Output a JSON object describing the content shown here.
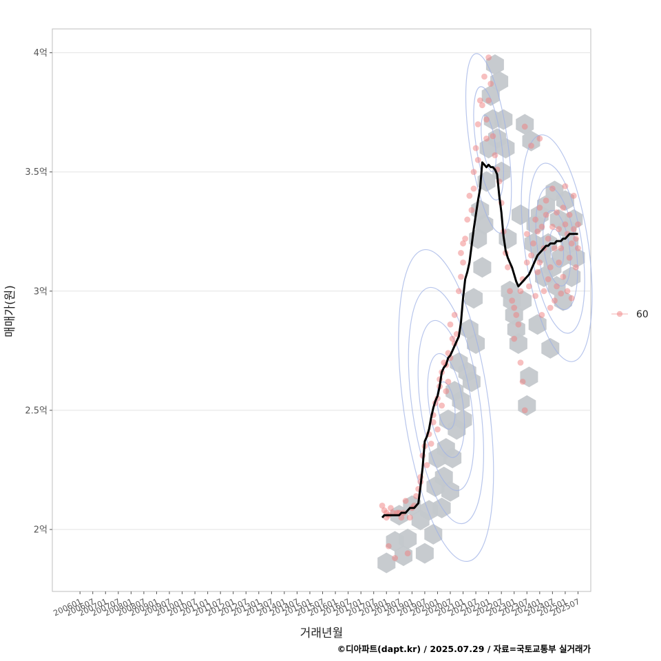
{
  "chart_data": {
    "type": "scatter",
    "xlabel": "거래년월",
    "ylabel": "매매가(원)",
    "caption": "©디아파트(dapt.kr) / 2025.07.29 / 자료=국토교통부 실거래가",
    "legend": {
      "position": "right",
      "entries": [
        "60"
      ]
    },
    "grid": true,
    "x_ticks": [
      "200601",
      "200607",
      "200701",
      "200707",
      "200801",
      "200807",
      "200901",
      "200907",
      "201001",
      "201007",
      "201101",
      "201107",
      "201201",
      "201207",
      "201301",
      "201307",
      "201401",
      "201407",
      "201501",
      "201507",
      "201601",
      "201607",
      "201701",
      "201707",
      "201801",
      "201807",
      "201901",
      "201907",
      "202001",
      "202007",
      "202101",
      "202107",
      "202201",
      "202207",
      "202301",
      "202307",
      "202401",
      "202407",
      "202501",
      "202507"
    ],
    "y_ticks": [
      {
        "value": 2.0,
        "label": "2억"
      },
      {
        "value": 2.5,
        "label": "2.5억"
      },
      {
        "value": 3.0,
        "label": "3억"
      },
      {
        "value": 3.5,
        "label": "3.5억"
      },
      {
        "value": 4.0,
        "label": "4억"
      }
    ],
    "xlim": [
      "200412",
      "202601"
    ],
    "ylim": [
      1.74,
      4.1
    ],
    "y_unit": "억원",
    "colors": {
      "points": "#f08080",
      "hexbin": "#c4c8cc",
      "contour": "#9fb1e6",
      "trend": "#000000",
      "grid": "#e3e3e3",
      "panel_border": "#bdbdbd"
    },
    "trend_line": {
      "name": "60",
      "x": [
        "201711",
        "201712",
        "201801",
        "201802",
        "201803",
        "201804",
        "201805",
        "201806",
        "201807",
        "201808",
        "201809",
        "201810",
        "201811",
        "201812",
        "201901",
        "201902",
        "201903",
        "201904",
        "201905",
        "201906",
        "201907",
        "201908",
        "201909",
        "201910",
        "201911",
        "201912",
        "202001",
        "202002",
        "202003",
        "202004",
        "202005",
        "202006",
        "202007",
        "202008",
        "202009",
        "202010",
        "202011",
        "202012",
        "202101",
        "202102",
        "202103",
        "202104",
        "202105",
        "202106",
        "202107",
        "202108",
        "202109",
        "202110",
        "202111",
        "202112",
        "202201",
        "202202",
        "202203",
        "202204",
        "202205",
        "202206",
        "202207",
        "202208",
        "202209",
        "202210",
        "202211",
        "202212",
        "202301",
        "202302",
        "202303",
        "202304",
        "202305",
        "202306",
        "202307",
        "202308",
        "202309",
        "202310",
        "202311",
        "202312",
        "202401",
        "202402",
        "202403",
        "202404",
        "202405",
        "202406",
        "202407",
        "202408",
        "202409",
        "202410",
        "202411",
        "202412",
        "202501",
        "202502",
        "202503",
        "202504",
        "202505",
        "202506",
        "202507"
      ],
      "y": [
        2.05,
        2.06,
        2.06,
        2.06,
        2.06,
        2.06,
        2.06,
        2.06,
        2.06,
        2.07,
        2.07,
        2.07,
        2.08,
        2.09,
        2.09,
        2.09,
        2.1,
        2.11,
        2.18,
        2.26,
        2.37,
        2.39,
        2.42,
        2.47,
        2.51,
        2.54,
        2.56,
        2.6,
        2.66,
        2.68,
        2.69,
        2.72,
        2.73,
        2.75,
        2.77,
        2.79,
        2.81,
        2.87,
        2.97,
        3.05,
        3.08,
        3.12,
        3.19,
        3.26,
        3.32,
        3.38,
        3.43,
        3.54,
        3.53,
        3.52,
        3.53,
        3.52,
        3.52,
        3.51,
        3.49,
        3.4,
        3.33,
        3.23,
        3.17,
        3.14,
        3.12,
        3.1,
        3.07,
        3.04,
        3.02,
        3.03,
        3.04,
        3.05,
        3.06,
        3.07,
        3.09,
        3.11,
        3.13,
        3.15,
        3.16,
        3.17,
        3.18,
        3.19,
        3.19,
        3.2,
        3.2,
        3.2,
        3.21,
        3.21,
        3.21,
        3.22,
        3.22,
        3.23,
        3.24,
        3.24,
        3.24,
        3.24,
        3.24
      ]
    },
    "hexbins": [
      [
        "201801",
        1.86
      ],
      [
        "201805",
        1.95
      ],
      [
        "201807",
        2.06
      ],
      [
        "201809",
        1.89
      ],
      [
        "201811",
        1.96
      ],
      [
        "201901",
        2.1
      ],
      [
        "201905",
        2.04
      ],
      [
        "201907",
        1.9
      ],
      [
        "201909",
        2.08
      ],
      [
        "201911",
        1.98
      ],
      [
        "201912",
        2.18
      ],
      [
        "202001",
        2.3
      ],
      [
        "202003",
        2.09
      ],
      [
        "202004",
        2.22
      ],
      [
        "202005",
        2.34
      ],
      [
        "202006",
        2.46
      ],
      [
        "202007",
        2.16
      ],
      [
        "202008",
        2.3
      ],
      [
        "202009",
        2.58
      ],
      [
        "202010",
        2.42
      ],
      [
        "202011",
        2.7
      ],
      [
        "202012",
        2.54
      ],
      [
        "202101",
        2.46
      ],
      [
        "202103",
        2.66
      ],
      [
        "202104",
        2.84
      ],
      [
        "202105",
        2.62
      ],
      [
        "202106",
        2.97
      ],
      [
        "202107",
        2.78
      ],
      [
        "202108",
        3.22
      ],
      [
        "202109",
        3.34
      ],
      [
        "202110",
        3.1
      ],
      [
        "202111",
        3.28
      ],
      [
        "202112",
        3.46
      ],
      [
        "202201",
        3.6
      ],
      [
        "202202",
        3.82
      ],
      [
        "202203",
        3.72
      ],
      [
        "202204",
        3.95
      ],
      [
        "202205",
        3.64
      ],
      [
        "202206",
        3.88
      ],
      [
        "202207",
        3.5
      ],
      [
        "202208",
        3.72
      ],
      [
        "202209",
        3.6
      ],
      [
        "202210",
        3.22
      ],
      [
        "202211",
        3.0
      ],
      [
        "202212",
        2.96
      ],
      [
        "202301",
        2.9
      ],
      [
        "202302",
        2.84
      ],
      [
        "202303",
        2.78
      ],
      [
        "202304",
        3.32
      ],
      [
        "202305",
        2.96
      ],
      [
        "202306",
        3.7
      ],
      [
        "202307",
        2.52
      ],
      [
        "202308",
        2.64
      ],
      [
        "202309",
        3.63
      ],
      [
        "202310",
        3.2
      ],
      [
        "202311",
        3.28
      ],
      [
        "202312",
        2.86
      ],
      [
        "202401",
        3.32
      ],
      [
        "202402",
        3.16
      ],
      [
        "202403",
        3.06
      ],
      [
        "202404",
        3.36
      ],
      [
        "202405",
        3.2
      ],
      [
        "202406",
        2.76
      ],
      [
        "202407",
        3.1
      ],
      [
        "202408",
        3.42
      ],
      [
        "202409",
        3.02
      ],
      [
        "202410",
        3.3
      ],
      [
        "202411",
        3.14
      ],
      [
        "202412",
        2.96
      ],
      [
        "202501",
        3.38
      ],
      [
        "202502",
        3.26
      ],
      [
        "202503",
        3.2
      ],
      [
        "202504",
        3.06
      ],
      [
        "202505",
        3.3
      ],
      [
        "202506",
        3.14
      ]
    ],
    "points": [
      [
        "201711",
        2.1
      ],
      [
        "201712",
        2.08
      ],
      [
        "201801",
        2.07
      ],
      [
        "201801",
        2.05
      ],
      [
        "201802",
        1.93
      ],
      [
        "201802",
        2.06
      ],
      [
        "201803",
        2.09
      ],
      [
        "201804",
        2.07
      ],
      [
        "201805",
        1.88
      ],
      [
        "201806",
        2.07
      ],
      [
        "201807",
        2.07
      ],
      [
        "201808",
        2.05
      ],
      [
        "201809",
        2.07
      ],
      [
        "201810",
        2.12
      ],
      [
        "201811",
        1.9
      ],
      [
        "201812",
        2.05
      ],
      [
        "201901",
        2.09
      ],
      [
        "201902",
        2.1
      ],
      [
        "201903",
        2.14
      ],
      [
        "201904",
        2.17
      ],
      [
        "201905",
        2.2
      ],
      [
        "201905",
        2.22
      ],
      [
        "201906",
        2.31
      ],
      [
        "201907",
        2.35
      ],
      [
        "201908",
        2.27
      ],
      [
        "201909",
        2.4
      ],
      [
        "201910",
        2.36
      ],
      [
        "201911",
        2.45
      ],
      [
        "201911",
        2.48
      ],
      [
        "201912",
        2.53
      ],
      [
        "202001",
        2.55
      ],
      [
        "202001",
        2.42
      ],
      [
        "202002",
        2.6
      ],
      [
        "202002",
        2.63
      ],
      [
        "202003",
        2.66
      ],
      [
        "202003",
        2.52
      ],
      [
        "202004",
        2.7
      ],
      [
        "202005",
        2.69
      ],
      [
        "202005",
        2.58
      ],
      [
        "202006",
        2.74
      ],
      [
        "202006",
        2.62
      ],
      [
        "202007",
        2.72
      ],
      [
        "202007",
        2.86
      ],
      [
        "202008",
        2.8
      ],
      [
        "202009",
        2.78
      ],
      [
        "202009",
        2.9
      ],
      [
        "202010",
        2.82
      ],
      [
        "202011",
        3.0
      ],
      [
        "202012",
        3.06
      ],
      [
        "202012",
        3.16
      ],
      [
        "202101",
        3.12
      ],
      [
        "202101",
        3.2
      ],
      [
        "202102",
        3.22
      ],
      [
        "202103",
        3.3
      ],
      [
        "202104",
        3.4
      ],
      [
        "202105",
        3.34
      ],
      [
        "202106",
        3.43
      ],
      [
        "202106",
        3.5
      ],
      [
        "202107",
        3.6
      ],
      [
        "202108",
        3.7
      ],
      [
        "202108",
        3.55
      ],
      [
        "202109",
        3.8
      ],
      [
        "202110",
        3.78
      ],
      [
        "202111",
        3.9
      ],
      [
        "202112",
        3.64
      ],
      [
        "202112",
        3.72
      ],
      [
        "202201",
        3.98
      ],
      [
        "202201",
        3.8
      ],
      [
        "202202",
        3.87
      ],
      [
        "202203",
        3.65
      ],
      [
        "202204",
        3.57
      ],
      [
        "202205",
        3.51
      ],
      [
        "202206",
        3.46
      ],
      [
        "202207",
        3.37
      ],
      [
        "202208",
        3.25
      ],
      [
        "202209",
        3.16
      ],
      [
        "202210",
        3.1
      ],
      [
        "202211",
        3.0
      ],
      [
        "202212",
        2.96
      ],
      [
        "202301",
        2.8
      ],
      [
        "202301",
        2.93
      ],
      [
        "202302",
        2.9
      ],
      [
        "202303",
        2.86
      ],
      [
        "202304",
        3.0
      ],
      [
        "202304",
        2.7
      ],
      [
        "202305",
        3.05
      ],
      [
        "202305",
        2.62
      ],
      [
        "202306",
        3.69
      ],
      [
        "202306",
        2.5
      ],
      [
        "202307",
        3.24
      ],
      [
        "202307",
        3.12
      ],
      [
        "202308",
        3.02
      ],
      [
        "202309",
        3.61
      ],
      [
        "202309",
        3.15
      ],
      [
        "202310",
        3.2
      ],
      [
        "202311",
        3.3
      ],
      [
        "202311",
        2.98
      ],
      [
        "202312",
        3.25
      ],
      [
        "202312",
        3.08
      ],
      [
        "202401",
        3.64
      ],
      [
        "202401",
        3.35
      ],
      [
        "202401",
        3.12
      ],
      [
        "202402",
        3.27
      ],
      [
        "202402",
        2.9
      ],
      [
        "202403",
        3.0
      ],
      [
        "202403",
        3.18
      ],
      [
        "202404",
        3.32
      ],
      [
        "202404",
        3.38
      ],
      [
        "202405",
        3.22
      ],
      [
        "202405",
        3.05
      ],
      [
        "202406",
        3.1
      ],
      [
        "202406",
        2.93
      ],
      [
        "202407",
        3.27
      ],
      [
        "202407",
        3.43
      ],
      [
        "202408",
        3.18
      ],
      [
        "202408",
        2.96
      ],
      [
        "202409",
        3.33
      ],
      [
        "202409",
        3.02
      ],
      [
        "202410",
        3.26
      ],
      [
        "202410",
        3.12
      ],
      [
        "202411",
        3.18
      ],
      [
        "202411",
        2.99
      ],
      [
        "202412",
        3.35
      ],
      [
        "202412",
        3.06
      ],
      [
        "202501",
        3.28
      ],
      [
        "202501",
        3.44
      ],
      [
        "202502",
        3.24
      ],
      [
        "202502",
        3.0
      ],
      [
        "202503",
        3.32
      ],
      [
        "202503",
        3.14
      ],
      [
        "202504",
        3.2
      ],
      [
        "202504",
        2.97
      ],
      [
        "202505",
        3.4
      ],
      [
        "202505",
        3.26
      ],
      [
        "202506",
        3.22
      ],
      [
        "202506",
        3.1
      ],
      [
        "202507",
        3.28
      ],
      [
        "202507",
        3.18
      ]
    ],
    "contours": [
      {
        "center_x": "202005",
        "center_y": 2.52,
        "spread_months": [
          4,
          8,
          12,
          16,
          20
        ],
        "spread_y": [
          0.1,
          0.22,
          0.36,
          0.5,
          0.66
        ]
      },
      {
        "center_x": "202409",
        "center_y": 3.18,
        "spread_months": [
          3,
          6,
          9,
          12,
          15
        ],
        "spread_y": [
          0.08,
          0.16,
          0.26,
          0.36,
          0.48
        ]
      },
      {
        "center_x": "202201",
        "center_y": 3.62,
        "spread_months": [
          3,
          6,
          9
        ],
        "spread_y": [
          0.12,
          0.24,
          0.38
        ]
      }
    ]
  }
}
